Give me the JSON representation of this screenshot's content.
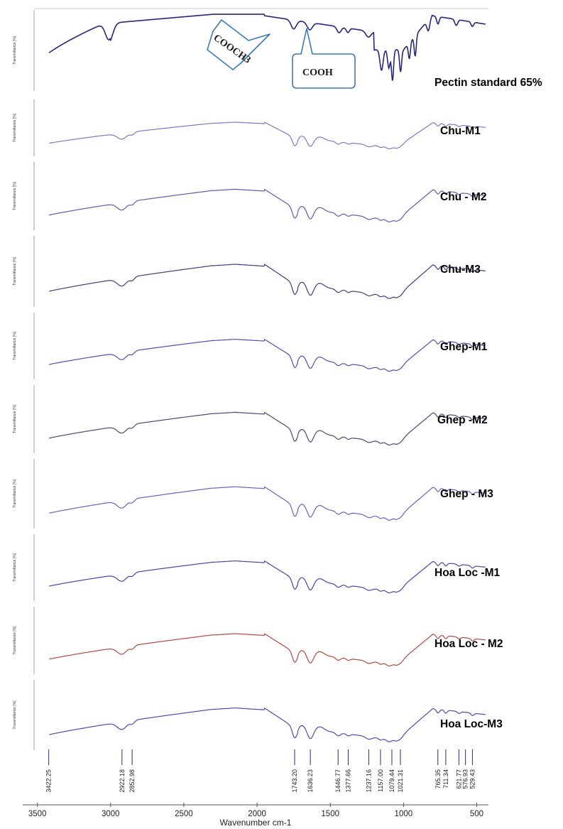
{
  "chart_data": {
    "type": "line",
    "xlabel": "Wavenumber cm-1",
    "ylabel": "Transmittance [%]",
    "xlim": [
      3600,
      420
    ],
    "x_ticks": [
      3500,
      3000,
      2500,
      2000,
      1500,
      1000,
      500
    ],
    "peak_positions": [
      "3422.25",
      "2922.18",
      "2852.98",
      "1743.20",
      "1636.23",
      "1446.77",
      "1377.66",
      "1237.16",
      "1157.00",
      "1079.44",
      "1021.31",
      "765.35",
      "711.34",
      "621.77",
      "576.93",
      "529.43"
    ],
    "annotations": [
      {
        "text": "COOCH3",
        "x": 1743
      },
      {
        "text": "COOH",
        "x": 1636
      }
    ],
    "series": [
      {
        "name": "Pectin standard 65%",
        "color": "#26267a",
        "kind": "standard"
      },
      {
        "name": "Chu-M1",
        "color": "#7a7ac4",
        "kind": "sample"
      },
      {
        "name": "Chu - M2",
        "color": "#5c5cae",
        "kind": "sample"
      },
      {
        "name": "Chu-M3",
        "color": "#3e3e7e",
        "kind": "sample"
      },
      {
        "name": "Ghep-M1",
        "color": "#4f4fb4",
        "kind": "sample"
      },
      {
        "name": "Ghep -M2",
        "color": "#484870",
        "kind": "sample"
      },
      {
        "name": "Ghep - M3",
        "color": "#6464bc",
        "kind": "sample"
      },
      {
        "name": "Hoa Loc -M1",
        "color": "#4545aa",
        "kind": "sample"
      },
      {
        "name": "Hoa Loc - M2",
        "color": "#b04a42",
        "kind": "sample"
      },
      {
        "name": "Hoa Loc-M3",
        "color": "#4c4cae",
        "kind": "sample"
      }
    ]
  }
}
